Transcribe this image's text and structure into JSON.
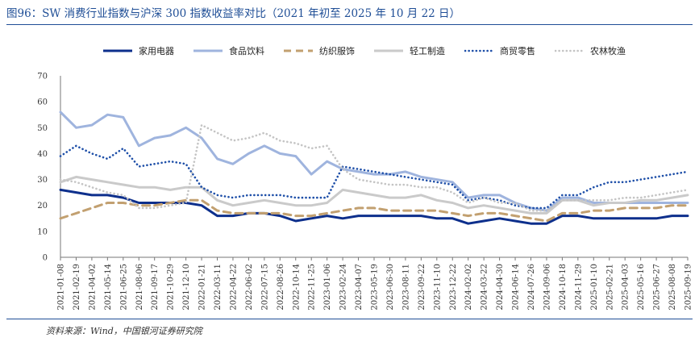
{
  "title": "图96：SW 消费行业指数与沪深 300 指数收益率对比（2021 年初至 2025 年 10 月 22 日）",
  "source": "资料来源：Wind，中国银河证券研究院",
  "chart_data": {
    "type": "line",
    "title": "图96：SW 消费行业指数与沪深 300 指数收益率对比（2021 年初至 2025 年 10 月 22 日）",
    "xlabel": "",
    "ylabel": "",
    "ylim": [
      0,
      70
    ],
    "yticks": [
      0,
      10,
      20,
      30,
      40,
      50,
      60,
      70
    ],
    "x": [
      "2021-01-08",
      "2021-02-19",
      "2021-04-02",
      "2021-05-14",
      "2021-06-25",
      "2021-08-06",
      "2021-09-17",
      "2021-10-29",
      "2021-12-10",
      "2022-01-21",
      "2022-03-11",
      "2022-04-22",
      "2022-06-02",
      "2022-07-15",
      "2022-08-26",
      "2022-10-14",
      "2022-11-25",
      "2023-01-06",
      "2023-02-24",
      "2023-04-07",
      "2023-05-19",
      "2023-06-30",
      "2023-08-11",
      "2023-09-22",
      "2023-11-10",
      "2023-12-22",
      "2024-02-02",
      "2024-03-22",
      "2024-04-30",
      "2024-06-14",
      "2024-07-26",
      "2024-09-06",
      "2024-10-18",
      "2024-11-29",
      "2025-01-10",
      "2025-02-21",
      "2025-04-03",
      "2025-05-16",
      "2025-06-27",
      "2025-08-08",
      "2025-09-19"
    ],
    "legend_position": "top",
    "series": [
      {
        "name": "家用电器",
        "color": "#0d2f8c",
        "style": "solid",
        "values": [
          26,
          25,
          24,
          24,
          23,
          21,
          21,
          21,
          21,
          20,
          16,
          16,
          17,
          17,
          16,
          14,
          15,
          16,
          15,
          16,
          16,
          16,
          16,
          16,
          15,
          15,
          13,
          14,
          15,
          14,
          13,
          13,
          16,
          16,
          15,
          15,
          15,
          15,
          15,
          16,
          16
        ]
      },
      {
        "name": "食品饮料",
        "color": "#9fb4de",
        "style": "solid",
        "values": [
          56,
          50,
          51,
          55,
          54,
          43,
          46,
          47,
          50,
          46,
          38,
          36,
          40,
          43,
          40,
          39,
          32,
          37,
          34,
          33,
          32,
          32,
          33,
          31,
          30,
          29,
          23,
          24,
          24,
          21,
          19,
          18,
          23,
          23,
          21,
          21,
          21,
          21,
          21,
          21,
          21
        ]
      },
      {
        "name": "纺织服饰",
        "color": "#c2a070",
        "style": "dashed",
        "values": [
          15,
          17,
          19,
          21,
          21,
          20,
          20,
          21,
          22,
          22,
          18,
          17,
          17,
          17,
          17,
          16,
          16,
          17,
          18,
          19,
          19,
          18,
          18,
          18,
          18,
          17,
          16,
          17,
          17,
          16,
          15,
          14,
          17,
          17,
          18,
          18,
          19,
          19,
          19,
          20,
          20
        ]
      },
      {
        "name": "轻工制造",
        "color": "#cacaca",
        "style": "solid",
        "values": [
          29,
          31,
          30,
          29,
          28,
          27,
          27,
          26,
          27,
          27,
          22,
          20,
          21,
          22,
          21,
          20,
          20,
          21,
          26,
          25,
          24,
          23,
          23,
          24,
          22,
          21,
          19,
          20,
          19,
          18,
          17,
          17,
          22,
          22,
          20,
          21,
          21,
          22,
          22,
          23,
          24
        ]
      },
      {
        "name": "商贸零售",
        "color": "#1e4fa8",
        "style": "dotted",
        "values": [
          39,
          43,
          40,
          38,
          42,
          35,
          36,
          37,
          36,
          27,
          24,
          23,
          24,
          24,
          24,
          23,
          23,
          23,
          35,
          34,
          33,
          32,
          31,
          30,
          29,
          28,
          22,
          23,
          22,
          20,
          19,
          19,
          24,
          24,
          27,
          29,
          29,
          30,
          31,
          32,
          33
        ]
      },
      {
        "name": "农林牧渔",
        "color": "#c4c4c4",
        "style": "dotted",
        "values": [
          30,
          29,
          27,
          25,
          24,
          19,
          19,
          20,
          21,
          51,
          48,
          45,
          46,
          48,
          45,
          44,
          42,
          43,
          34,
          30,
          29,
          28,
          28,
          27,
          27,
          25,
          21,
          23,
          21,
          21,
          18,
          18,
          22,
          22,
          22,
          22,
          23,
          23,
          24,
          25,
          26
        ]
      }
    ]
  }
}
